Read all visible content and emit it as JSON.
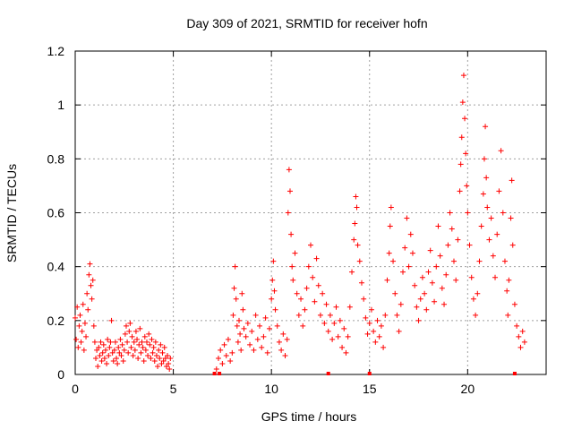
{
  "chart_data": {
    "type": "scatter",
    "title": "Day 309 of 2021, SRMTID for receiver hofn",
    "xlabel": "GPS time / hours",
    "ylabel": "SRMTID / TECUs",
    "xlim": [
      0,
      24
    ],
    "ylim": [
      0,
      1.2
    ],
    "xticks": [
      0,
      5,
      10,
      15,
      20
    ],
    "xtick_labels": [
      "0",
      "5",
      "10",
      "15",
      "20"
    ],
    "yticks": [
      0,
      0.2,
      0.4,
      0.6,
      0.8,
      1.0,
      1.2
    ],
    "ytick_labels": [
      "0",
      "0.2",
      "0.4",
      "0.6",
      "0.8",
      "1",
      "1.2"
    ],
    "grid": true,
    "marker": "+",
    "color": "#ff0000",
    "series": [
      {
        "name": "SRMTID",
        "points": [
          [
            0.0,
            0.21
          ],
          [
            0.05,
            0.13
          ],
          [
            0.1,
            0.25
          ],
          [
            0.15,
            0.1
          ],
          [
            0.2,
            0.18
          ],
          [
            0.25,
            0.22
          ],
          [
            0.3,
            0.12
          ],
          [
            0.35,
            0.16
          ],
          [
            0.4,
            0.26
          ],
          [
            0.45,
            0.09
          ],
          [
            0.5,
            0.19
          ],
          [
            0.55,
            0.14
          ],
          [
            0.6,
            0.3
          ],
          [
            0.65,
            0.24
          ],
          [
            0.7,
            0.37
          ],
          [
            0.75,
            0.41
          ],
          [
            0.8,
            0.33
          ],
          [
            0.85,
            0.28
          ],
          [
            0.9,
            0.35
          ],
          [
            0.95,
            0.18
          ],
          [
            1.0,
            0.12
          ],
          [
            1.05,
            0.06
          ],
          [
            1.1,
            0.09
          ],
          [
            1.15,
            0.03
          ],
          [
            1.2,
            0.1
          ],
          [
            1.25,
            0.07
          ],
          [
            1.3,
            0.12
          ],
          [
            1.35,
            0.05
          ],
          [
            1.4,
            0.08
          ],
          [
            1.45,
            0.11
          ],
          [
            1.5,
            0.06
          ],
          [
            1.55,
            0.09
          ],
          [
            1.6,
            0.04
          ],
          [
            1.65,
            0.13
          ],
          [
            1.7,
            0.07
          ],
          [
            1.75,
            0.1
          ],
          [
            1.8,
            0.12
          ],
          [
            1.85,
            0.2
          ],
          [
            1.9,
            0.08
          ],
          [
            1.95,
            0.05
          ],
          [
            2.0,
            0.09
          ],
          [
            2.05,
            0.12
          ],
          [
            2.1,
            0.06
          ],
          [
            2.15,
            0.04
          ],
          [
            2.2,
            0.1
          ],
          [
            2.25,
            0.08
          ],
          [
            2.3,
            0.13
          ],
          [
            2.35,
            0.07
          ],
          [
            2.4,
            0.11
          ],
          [
            2.45,
            0.05
          ],
          [
            2.5,
            0.09
          ],
          [
            2.55,
            0.15
          ],
          [
            2.6,
            0.18
          ],
          [
            2.65,
            0.12
          ],
          [
            2.7,
            0.08
          ],
          [
            2.75,
            0.16
          ],
          [
            2.8,
            0.19
          ],
          [
            2.85,
            0.1
          ],
          [
            2.9,
            0.14
          ],
          [
            2.95,
            0.07
          ],
          [
            3.0,
            0.12
          ],
          [
            3.05,
            0.09
          ],
          [
            3.1,
            0.16
          ],
          [
            3.15,
            0.13
          ],
          [
            3.2,
            0.06
          ],
          [
            3.25,
            0.11
          ],
          [
            3.3,
            0.17
          ],
          [
            3.35,
            0.08
          ],
          [
            3.4,
            0.12
          ],
          [
            3.45,
            0.1
          ],
          [
            3.5,
            0.05
          ],
          [
            3.55,
            0.14
          ],
          [
            3.6,
            0.09
          ],
          [
            3.65,
            0.12
          ],
          [
            3.7,
            0.07
          ],
          [
            3.75,
            0.15
          ],
          [
            3.8,
            0.11
          ],
          [
            3.85,
            0.06
          ],
          [
            3.9,
            0.13
          ],
          [
            3.95,
            0.08
          ],
          [
            4.0,
            0.1
          ],
          [
            4.05,
            0.05
          ],
          [
            4.1,
            0.12
          ],
          [
            4.15,
            0.07
          ],
          [
            4.2,
            0.03
          ],
          [
            4.25,
            0.09
          ],
          [
            4.3,
            0.06
          ],
          [
            4.35,
            0.11
          ],
          [
            4.4,
            0.04
          ],
          [
            4.45,
            0.08
          ],
          [
            4.5,
            0.05
          ],
          [
            4.55,
            0.1
          ],
          [
            4.6,
            0.06
          ],
          [
            4.65,
            0.03
          ],
          [
            4.7,
            0.07
          ],
          [
            4.75,
            0.04
          ],
          [
            4.8,
            0.02
          ],
          [
            4.85,
            0.06
          ],
          [
            7.2,
            0.02
          ],
          [
            7.3,
            0.06
          ],
          [
            7.4,
            0.09
          ],
          [
            7.5,
            0.04
          ],
          [
            7.6,
            0.11
          ],
          [
            7.7,
            0.07
          ],
          [
            7.8,
            0.13
          ],
          [
            7.9,
            0.05
          ],
          [
            8.0,
            0.08
          ],
          [
            8.05,
            0.22
          ],
          [
            8.1,
            0.32
          ],
          [
            8.15,
            0.4
          ],
          [
            8.2,
            0.28
          ],
          [
            8.25,
            0.18
          ],
          [
            8.3,
            0.12
          ],
          [
            8.35,
            0.2
          ],
          [
            8.4,
            0.15
          ],
          [
            8.45,
            0.09
          ],
          [
            8.5,
            0.3
          ],
          [
            8.55,
            0.24
          ],
          [
            8.6,
            0.17
          ],
          [
            8.7,
            0.14
          ],
          [
            8.8,
            0.19
          ],
          [
            8.9,
            0.11
          ],
          [
            9.0,
            0.16
          ],
          [
            9.1,
            0.09
          ],
          [
            9.2,
            0.22
          ],
          [
            9.3,
            0.13
          ],
          [
            9.4,
            0.18
          ],
          [
            9.5,
            0.1
          ],
          [
            9.6,
            0.14
          ],
          [
            9.7,
            0.21
          ],
          [
            9.8,
            0.08
          ],
          [
            9.9,
            0.17
          ],
          [
            10.0,
            0.28
          ],
          [
            10.05,
            0.35
          ],
          [
            10.1,
            0.42
          ],
          [
            10.15,
            0.31
          ],
          [
            10.2,
            0.24
          ],
          [
            10.3,
            0.18
          ],
          [
            10.4,
            0.12
          ],
          [
            10.5,
            0.09
          ],
          [
            10.6,
            0.15
          ],
          [
            10.7,
            0.07
          ],
          [
            10.8,
            0.13
          ],
          [
            10.85,
            0.6
          ],
          [
            10.9,
            0.76
          ],
          [
            10.95,
            0.68
          ],
          [
            11.0,
            0.52
          ],
          [
            11.05,
            0.4
          ],
          [
            11.1,
            0.35
          ],
          [
            11.2,
            0.45
          ],
          [
            11.3,
            0.3
          ],
          [
            11.4,
            0.22
          ],
          [
            11.5,
            0.28
          ],
          [
            11.6,
            0.18
          ],
          [
            11.7,
            0.24
          ],
          [
            11.8,
            0.32
          ],
          [
            11.9,
            0.4
          ],
          [
            12.0,
            0.48
          ],
          [
            12.1,
            0.36
          ],
          [
            12.2,
            0.27
          ],
          [
            12.3,
            0.43
          ],
          [
            12.4,
            0.33
          ],
          [
            12.5,
            0.22
          ],
          [
            12.6,
            0.3
          ],
          [
            12.7,
            0.19
          ],
          [
            12.8,
            0.26
          ],
          [
            12.9,
            0.16
          ],
          [
            13.0,
            0.22
          ],
          [
            13.1,
            0.13
          ],
          [
            13.2,
            0.19
          ],
          [
            13.3,
            0.25
          ],
          [
            13.4,
            0.14
          ],
          [
            13.5,
            0.2
          ],
          [
            13.6,
            0.1
          ],
          [
            13.7,
            0.17
          ],
          [
            13.8,
            0.08
          ],
          [
            13.9,
            0.14
          ],
          [
            14.0,
            0.25
          ],
          [
            14.1,
            0.38
          ],
          [
            14.2,
            0.5
          ],
          [
            14.25,
            0.56
          ],
          [
            14.3,
            0.66
          ],
          [
            14.35,
            0.62
          ],
          [
            14.4,
            0.48
          ],
          [
            14.5,
            0.42
          ],
          [
            14.6,
            0.34
          ],
          [
            14.7,
            0.28
          ],
          [
            14.8,
            0.21
          ],
          [
            14.9,
            0.15
          ],
          [
            15.0,
            0.19
          ],
          [
            15.1,
            0.24
          ],
          [
            15.2,
            0.16
          ],
          [
            15.3,
            0.12
          ],
          [
            15.4,
            0.2
          ],
          [
            15.5,
            0.14
          ],
          [
            15.6,
            0.18
          ],
          [
            15.7,
            0.1
          ],
          [
            15.8,
            0.22
          ],
          [
            15.9,
            0.35
          ],
          [
            16.0,
            0.45
          ],
          [
            16.05,
            0.55
          ],
          [
            16.1,
            0.62
          ],
          [
            16.2,
            0.42
          ],
          [
            16.3,
            0.3
          ],
          [
            16.4,
            0.22
          ],
          [
            16.5,
            0.16
          ],
          [
            16.6,
            0.26
          ],
          [
            16.7,
            0.38
          ],
          [
            16.8,
            0.47
          ],
          [
            16.9,
            0.58
          ],
          [
            17.0,
            0.4
          ],
          [
            17.1,
            0.52
          ],
          [
            17.2,
            0.45
          ],
          [
            17.3,
            0.33
          ],
          [
            17.4,
            0.25
          ],
          [
            17.5,
            0.2
          ],
          [
            17.6,
            0.28
          ],
          [
            17.7,
            0.36
          ],
          [
            17.8,
            0.3
          ],
          [
            17.9,
            0.24
          ],
          [
            18.0,
            0.38
          ],
          [
            18.1,
            0.46
          ],
          [
            18.2,
            0.34
          ],
          [
            18.3,
            0.27
          ],
          [
            18.4,
            0.4
          ],
          [
            18.5,
            0.55
          ],
          [
            18.6,
            0.44
          ],
          [
            18.7,
            0.32
          ],
          [
            18.8,
            0.26
          ],
          [
            18.9,
            0.37
          ],
          [
            19.0,
            0.48
          ],
          [
            19.1,
            0.6
          ],
          [
            19.2,
            0.54
          ],
          [
            19.3,
            0.42
          ],
          [
            19.4,
            0.35
          ],
          [
            19.5,
            0.5
          ],
          [
            19.6,
            0.68
          ],
          [
            19.65,
            0.78
          ],
          [
            19.7,
            0.88
          ],
          [
            19.75,
            1.01
          ],
          [
            19.8,
            1.11
          ],
          [
            19.85,
            0.95
          ],
          [
            19.9,
            0.82
          ],
          [
            19.95,
            0.7
          ],
          [
            20.0,
            0.6
          ],
          [
            20.1,
            0.48
          ],
          [
            20.2,
            0.36
          ],
          [
            20.3,
            0.28
          ],
          [
            20.4,
            0.22
          ],
          [
            20.5,
            0.3
          ],
          [
            20.6,
            0.42
          ],
          [
            20.7,
            0.55
          ],
          [
            20.8,
            0.67
          ],
          [
            20.85,
            0.8
          ],
          [
            20.9,
            0.92
          ],
          [
            20.95,
            0.73
          ],
          [
            21.0,
            0.62
          ],
          [
            21.1,
            0.5
          ],
          [
            21.2,
            0.58
          ],
          [
            21.3,
            0.44
          ],
          [
            21.4,
            0.36
          ],
          [
            21.5,
            0.52
          ],
          [
            21.6,
            0.68
          ],
          [
            21.7,
            0.83
          ],
          [
            21.8,
            0.6
          ],
          [
            21.9,
            0.42
          ],
          [
            22.0,
            0.31
          ],
          [
            22.05,
            0.22
          ],
          [
            22.1,
            0.35
          ],
          [
            22.2,
            0.58
          ],
          [
            22.25,
            0.72
          ],
          [
            22.3,
            0.48
          ],
          [
            22.4,
            0.26
          ],
          [
            22.5,
            0.18
          ],
          [
            22.6,
            0.14
          ],
          [
            22.7,
            0.1
          ],
          [
            22.8,
            0.16
          ],
          [
            22.9,
            0.12
          ]
        ]
      }
    ],
    "gap_markers_x": [
      7.1,
      7.35,
      12.9,
      15.0,
      22.4
    ]
  }
}
